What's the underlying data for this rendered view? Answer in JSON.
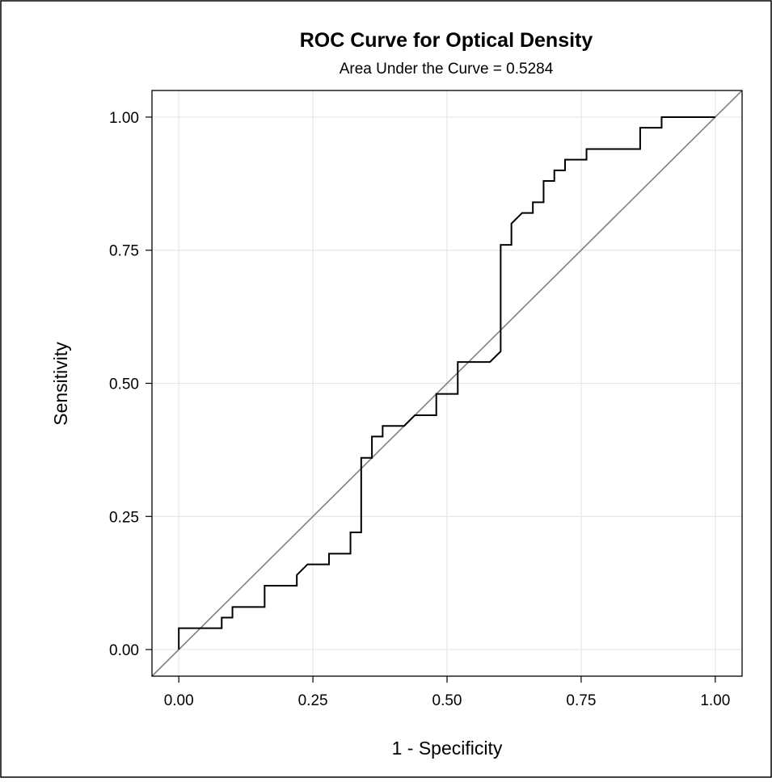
{
  "chart_data": {
    "type": "line",
    "title": "ROC Curve for Optical Density",
    "subtitle": "Area Under the Curve = 0.5284",
    "xlabel": "1 - Specificity",
    "ylabel": "Sensitivity",
    "xlim": [
      -0.05,
      1.05
    ],
    "ylim": [
      -0.05,
      1.05
    ],
    "x_ticks": [
      "0.00",
      "0.25",
      "0.50",
      "0.75",
      "1.00"
    ],
    "y_ticks": [
      "0.00",
      "0.25",
      "0.50",
      "0.75",
      "1.00"
    ],
    "grid": true,
    "legend": "none",
    "reference_line": {
      "from": [
        0,
        0
      ],
      "to": [
        1,
        1
      ],
      "color": "#808080"
    },
    "series": [
      {
        "color": "#000000",
        "points": [
          [
            0.0,
            0.0
          ],
          [
            0.0,
            0.04
          ],
          [
            0.08,
            0.04
          ],
          [
            0.08,
            0.06
          ],
          [
            0.1,
            0.06
          ],
          [
            0.1,
            0.08
          ],
          [
            0.16,
            0.08
          ],
          [
            0.16,
            0.12
          ],
          [
            0.22,
            0.12
          ],
          [
            0.22,
            0.14
          ],
          [
            0.24,
            0.16
          ],
          [
            0.28,
            0.16
          ],
          [
            0.28,
            0.18
          ],
          [
            0.32,
            0.18
          ],
          [
            0.32,
            0.22
          ],
          [
            0.34,
            0.22
          ],
          [
            0.34,
            0.36
          ],
          [
            0.36,
            0.36
          ],
          [
            0.36,
            0.4
          ],
          [
            0.38,
            0.4
          ],
          [
            0.38,
            0.42
          ],
          [
            0.42,
            0.42
          ],
          [
            0.44,
            0.44
          ],
          [
            0.48,
            0.44
          ],
          [
            0.48,
            0.48
          ],
          [
            0.52,
            0.48
          ],
          [
            0.52,
            0.54
          ],
          [
            0.58,
            0.54
          ],
          [
            0.6,
            0.56
          ],
          [
            0.6,
            0.76
          ],
          [
            0.62,
            0.76
          ],
          [
            0.62,
            0.8
          ],
          [
            0.64,
            0.82
          ],
          [
            0.66,
            0.82
          ],
          [
            0.66,
            0.84
          ],
          [
            0.68,
            0.84
          ],
          [
            0.68,
            0.88
          ],
          [
            0.7,
            0.88
          ],
          [
            0.7,
            0.9
          ],
          [
            0.72,
            0.9
          ],
          [
            0.72,
            0.92
          ],
          [
            0.76,
            0.92
          ],
          [
            0.76,
            0.94
          ],
          [
            0.86,
            0.94
          ],
          [
            0.86,
            0.98
          ],
          [
            0.9,
            0.98
          ],
          [
            0.9,
            1.0
          ],
          [
            1.0,
            1.0
          ]
        ]
      }
    ]
  }
}
